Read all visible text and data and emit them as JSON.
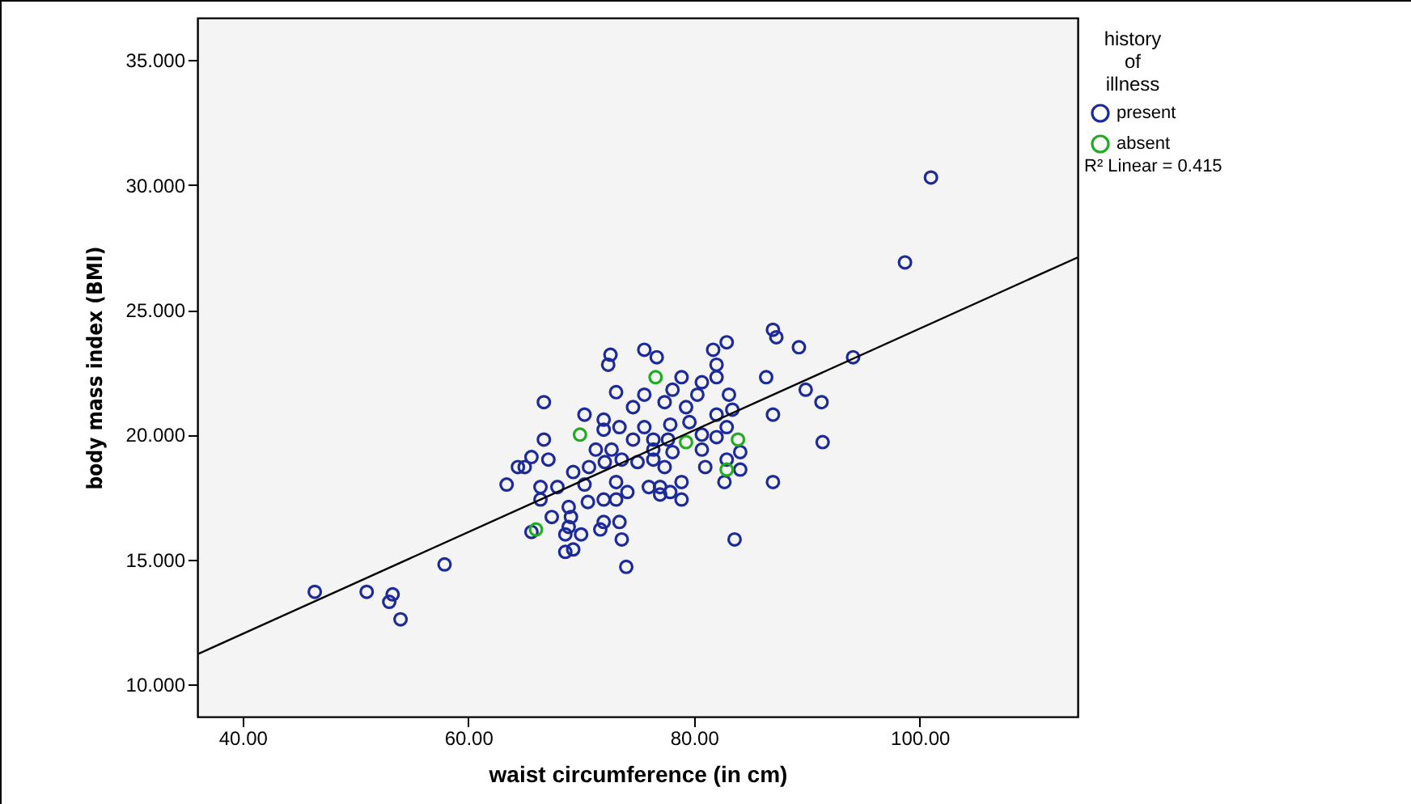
{
  "chart_data": {
    "type": "scatter",
    "xlabel": "waist circumference (in cm)",
    "ylabel": "body mass index (BMI)",
    "legend_title": "history of illness",
    "legend": "top right",
    "marker": "circle",
    "grid": false,
    "xlim": [
      36,
      114
    ],
    "ylim": [
      8.7,
      36.7
    ],
    "xticks": [
      {
        "value": 40,
        "label": "40.00"
      },
      {
        "value": 60,
        "label": "60.00"
      },
      {
        "value": 80,
        "label": "80.00"
      },
      {
        "value": 100,
        "label": "100.00"
      }
    ],
    "yticks": [
      {
        "value": 10,
        "label": "10.000"
      },
      {
        "value": 15,
        "label": "15.000"
      },
      {
        "value": 20,
        "label": "20.000"
      },
      {
        "value": 25,
        "label": "25.000"
      },
      {
        "value": 30,
        "label": "30.000"
      },
      {
        "value": 35,
        "label": "35.000"
      }
    ],
    "annotations": [
      "R² Linear = 0.415"
    ],
    "series": [
      {
        "name": "present",
        "color": "#1c2b99",
        "x": [
          72.6,
          75.6,
          72.4,
          66.7,
          73.1,
          75.6,
          74.6,
          70.3,
          72.0,
          66.7,
          72.0,
          73.4,
          75.6,
          65.6,
          67.1,
          71.3,
          72.7,
          74.6,
          76.4,
          63.4,
          66.4,
          65.0,
          69.3,
          70.7,
          72.1,
          73.6,
          75.0,
          76.4,
          70.3,
          73.1,
          76.0,
          77.0,
          68.9,
          70.6,
          72.0,
          73.1,
          74.1,
          67.4,
          69.1,
          68.9,
          65.6,
          68.6,
          70.0,
          71.7,
          73.4,
          72.0,
          69.3,
          73.6,
          68.6,
          74.0,
          67.9,
          66.4,
          87.0,
          87.3,
          82.9,
          81.7,
          89.3,
          76.7,
          82.0,
          78.9,
          86.4,
          80.7,
          82.0,
          78.1,
          80.3,
          83.1,
          89.9,
          91.3,
          79.3,
          77.4,
          82.0,
          83.4,
          87.0,
          79.6,
          77.9,
          82.9,
          80.7,
          82.0,
          77.7,
          76.4,
          78.1,
          80.7,
          82.9,
          84.1,
          81.0,
          84.1,
          77.4,
          78.9,
          82.7,
          87.0,
          77.0,
          77.9,
          78.9,
          83.6,
          91.4,
          101.0,
          98.7,
          94.1,
          46.4,
          51.0,
          53.3,
          53.0,
          54.0,
          57.9,
          64.4
        ],
        "values": [
          23.2,
          23.4,
          22.8,
          21.3,
          21.7,
          21.6,
          21.1,
          20.8,
          20.6,
          19.8,
          20.2,
          20.3,
          20.3,
          19.1,
          19.0,
          19.4,
          19.4,
          19.8,
          19.8,
          18.0,
          17.9,
          18.7,
          18.5,
          18.7,
          18.9,
          19.0,
          18.9,
          19.0,
          18.0,
          18.1,
          17.9,
          17.6,
          17.1,
          17.3,
          17.4,
          17.4,
          17.7,
          16.7,
          16.7,
          16.3,
          16.1,
          16.0,
          16.0,
          16.2,
          16.5,
          16.5,
          15.4,
          15.8,
          15.3,
          14.7,
          17.9,
          17.4,
          24.2,
          23.9,
          23.7,
          23.4,
          23.5,
          23.1,
          22.8,
          22.3,
          22.3,
          22.1,
          22.3,
          21.8,
          21.6,
          21.6,
          21.8,
          21.3,
          21.1,
          21.3,
          20.8,
          21.0,
          20.8,
          20.5,
          20.4,
          20.3,
          20.0,
          19.9,
          19.8,
          19.4,
          19.3,
          19.4,
          19.0,
          19.3,
          18.7,
          18.6,
          18.7,
          18.1,
          18.1,
          18.1,
          17.9,
          17.7,
          17.4,
          15.8,
          19.7,
          30.3,
          26.9,
          23.1,
          13.7,
          13.7,
          13.6,
          13.3,
          12.6,
          14.8,
          18.7
        ]
      },
      {
        "name": "absent",
        "color": "#22aa22",
        "x": [
          76.6,
          69.9,
          66.0,
          83.9,
          79.3,
          82.9
        ],
        "values": [
          22.3,
          20.0,
          16.2,
          19.8,
          19.7,
          18.6
        ]
      },
      {
        "type": "line",
        "marker": "none",
        "color": "#000000",
        "x": [
          36,
          114
        ],
        "values": [
          11.2,
          27.1
        ]
      }
    ]
  }
}
